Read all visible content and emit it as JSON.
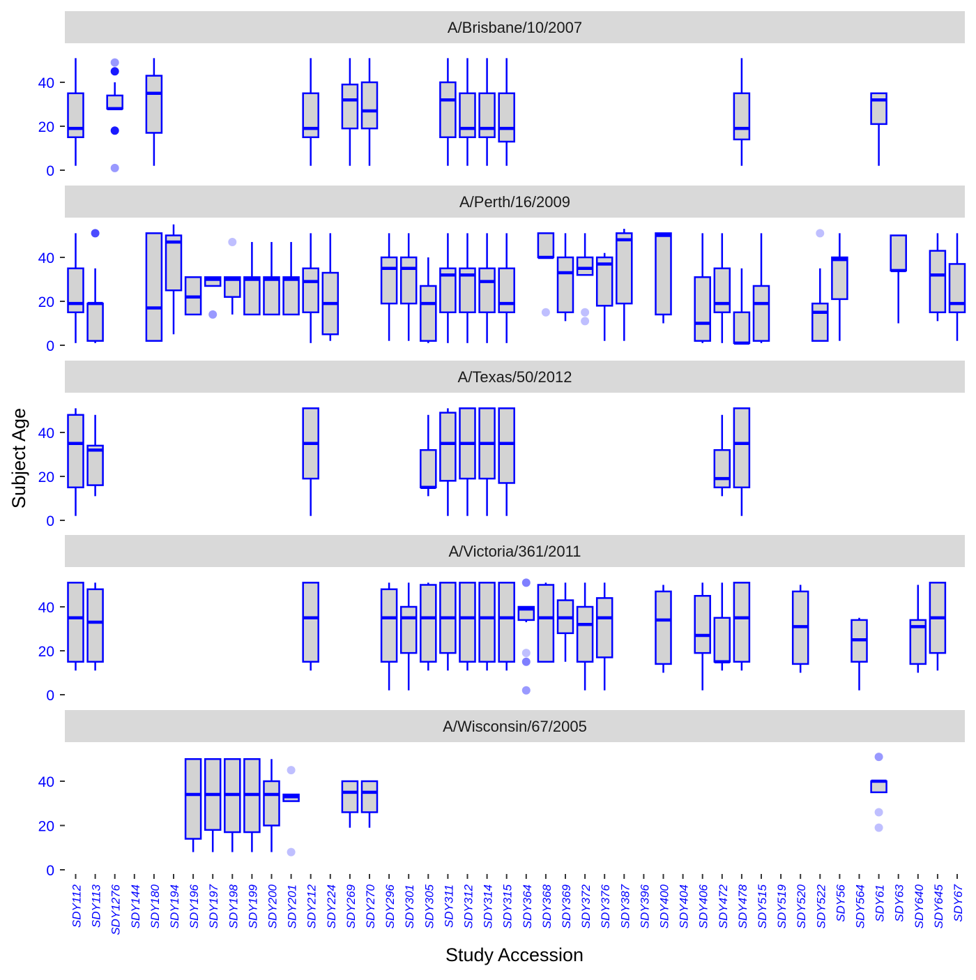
{
  "chart_data": {
    "type": "boxplot",
    "xlabel": "Study Accession",
    "ylabel": "Subject Age",
    "ylim": [
      0,
      52
    ],
    "yticks": [
      0,
      20,
      40
    ],
    "grid": false,
    "colors": {
      "box_fill": "#d3d3d3",
      "box_stroke": "#0000ff",
      "strip": "#d9d9d9",
      "tick_text": "#0000ff"
    },
    "categories": [
      "SDY112",
      "SDY113",
      "SDY1276",
      "SDY144",
      "SDY180",
      "SDY194",
      "SDY196",
      "SDY197",
      "SDY198",
      "SDY199",
      "SDY200",
      "SDY201",
      "SDY212",
      "SDY224",
      "SDY269",
      "SDY270",
      "SDY296",
      "SDY301",
      "SDY305",
      "SDY311",
      "SDY312",
      "SDY314",
      "SDY315",
      "SDY364",
      "SDY368",
      "SDY369",
      "SDY372",
      "SDY376",
      "SDY387",
      "SDY396",
      "SDY400",
      "SDY404",
      "SDY406",
      "SDY472",
      "SDY478",
      "SDY515",
      "SDY519",
      "SDY520",
      "SDY522",
      "SDY56",
      "SDY564",
      "SDY61",
      "SDY63",
      "SDY640",
      "SDY645",
      "SDY67"
    ],
    "facets": [
      {
        "label": "A/Brisbane/10/2007",
        "boxes": [
          {
            "cat": "SDY112",
            "min": 2,
            "q1": 15,
            "med": 19,
            "q3": 35,
            "max": 51
          },
          {
            "cat": "SDY1276",
            "min": 28,
            "q1": 28,
            "med": 28,
            "q3": 34,
            "max": 40,
            "outliers": [
              {
                "y": 49,
                "a": 0.4
              },
              {
                "y": 45,
                "a": 0.9
              },
              {
                "y": 18,
                "a": 0.9
              },
              {
                "y": 1,
                "a": 0.4
              }
            ]
          },
          {
            "cat": "SDY180",
            "min": 2,
            "q1": 17,
            "med": 35,
            "q3": 43,
            "max": 51
          },
          {
            "cat": "SDY212",
            "min": 2,
            "q1": 15,
            "med": 19,
            "q3": 35,
            "max": 51
          },
          {
            "cat": "SDY269",
            "min": 2,
            "q1": 19,
            "med": 32,
            "q3": 39,
            "max": 51
          },
          {
            "cat": "SDY270",
            "min": 2,
            "q1": 19,
            "med": 27,
            "q3": 40,
            "max": 51
          },
          {
            "cat": "SDY311",
            "min": 2,
            "q1": 15,
            "med": 32,
            "q3": 40,
            "max": 51
          },
          {
            "cat": "SDY312",
            "min": 2,
            "q1": 15,
            "med": 19,
            "q3": 35,
            "max": 51
          },
          {
            "cat": "SDY314",
            "min": 2,
            "q1": 15,
            "med": 19,
            "q3": 35,
            "max": 51
          },
          {
            "cat": "SDY315",
            "min": 2,
            "q1": 13,
            "med": 19,
            "q3": 35,
            "max": 51
          },
          {
            "cat": "SDY478",
            "min": 2,
            "q1": 14,
            "med": 19,
            "q3": 35,
            "max": 51
          },
          {
            "cat": "SDY61",
            "min": 2,
            "q1": 21,
            "med": 32,
            "q3": 35,
            "max": 35
          }
        ]
      },
      {
        "label": "A/Perth/16/2009",
        "boxes": [
          {
            "cat": "SDY112",
            "min": 1,
            "q1": 15,
            "med": 19,
            "q3": 35,
            "max": 51
          },
          {
            "cat": "SDY113",
            "min": 1,
            "q1": 2,
            "med": 19,
            "q3": 19,
            "max": 35,
            "outliers": [
              {
                "y": 51,
                "a": 0.7
              }
            ]
          },
          {
            "cat": "SDY180",
            "min": 2,
            "q1": 2,
            "med": 17,
            "q3": 51,
            "max": 51
          },
          {
            "cat": "SDY194",
            "min": 5,
            "q1": 25,
            "med": 47,
            "q3": 50,
            "max": 55
          },
          {
            "cat": "SDY196",
            "min": 14,
            "q1": 14,
            "med": 22,
            "q3": 31,
            "max": 31
          },
          {
            "cat": "SDY197",
            "min": 27,
            "q1": 27,
            "med": 30,
            "q3": 31,
            "max": 31,
            "outliers": [
              {
                "y": 14,
                "a": 0.4
              }
            ]
          },
          {
            "cat": "SDY198",
            "min": 14,
            "q1": 22,
            "med": 30,
            "q3": 31,
            "max": 31,
            "outliers": [
              {
                "y": 47,
                "a": 0.25
              }
            ]
          },
          {
            "cat": "SDY199",
            "min": 14,
            "q1": 14,
            "med": 30,
            "q3": 31,
            "max": 47
          },
          {
            "cat": "SDY200",
            "min": 14,
            "q1": 14,
            "med": 30,
            "q3": 31,
            "max": 47
          },
          {
            "cat": "SDY201",
            "min": 14,
            "q1": 14,
            "med": 30,
            "q3": 31,
            "max": 47
          },
          {
            "cat": "SDY212",
            "min": 1,
            "q1": 15,
            "med": 29,
            "q3": 35,
            "max": 51
          },
          {
            "cat": "SDY224",
            "min": 2,
            "q1": 5,
            "med": 19,
            "q3": 33,
            "max": 51
          },
          {
            "cat": "SDY296",
            "min": 2,
            "q1": 19,
            "med": 35,
            "q3": 40,
            "max": 51
          },
          {
            "cat": "SDY301",
            "min": 2,
            "q1": 19,
            "med": 35,
            "q3": 40,
            "max": 51
          },
          {
            "cat": "SDY305",
            "min": 1,
            "q1": 2,
            "med": 19,
            "q3": 27,
            "max": 40
          },
          {
            "cat": "SDY311",
            "min": 1,
            "q1": 15,
            "med": 32,
            "q3": 35,
            "max": 51
          },
          {
            "cat": "SDY312",
            "min": 1,
            "q1": 15,
            "med": 32,
            "q3": 35,
            "max": 51
          },
          {
            "cat": "SDY314",
            "min": 1,
            "q1": 15,
            "med": 29,
            "q3": 35,
            "max": 51
          },
          {
            "cat": "SDY315",
            "min": 1,
            "q1": 15,
            "med": 19,
            "q3": 35,
            "max": 51
          },
          {
            "cat": "SDY368",
            "min": 40,
            "q1": 40,
            "med": 40,
            "q3": 51,
            "max": 51,
            "outliers": [
              {
                "y": 15,
                "a": 0.25
              }
            ]
          },
          {
            "cat": "SDY369",
            "min": 11,
            "q1": 15,
            "med": 33,
            "q3": 40,
            "max": 51
          },
          {
            "cat": "SDY372",
            "min": 32,
            "q1": 32,
            "med": 35,
            "q3": 40,
            "max": 51,
            "outliers": [
              {
                "y": 15,
                "a": 0.25
              },
              {
                "y": 11,
                "a": 0.25
              }
            ]
          },
          {
            "cat": "SDY376",
            "min": 2,
            "q1": 18,
            "med": 37,
            "q3": 40,
            "max": 42
          },
          {
            "cat": "SDY387",
            "min": 2,
            "q1": 19,
            "med": 48,
            "q3": 51,
            "max": 53
          },
          {
            "cat": "SDY400",
            "min": 10,
            "q1": 14,
            "med": 50,
            "q3": 51,
            "max": 51
          },
          {
            "cat": "SDY406",
            "min": 1,
            "q1": 2,
            "med": 10,
            "q3": 31,
            "max": 51
          },
          {
            "cat": "SDY472",
            "min": 1,
            "q1": 15,
            "med": 19,
            "q3": 35,
            "max": 51
          },
          {
            "cat": "SDY478",
            "min": 1,
            "q1": 1,
            "med": 1,
            "q3": 15,
            "max": 35
          },
          {
            "cat": "SDY515",
            "min": 1,
            "q1": 2,
            "med": 19,
            "q3": 27,
            "max": 51
          },
          {
            "cat": "SDY522",
            "min": 2,
            "q1": 2,
            "med": 15,
            "q3": 19,
            "max": 35,
            "outliers": [
              {
                "y": 51,
                "a": 0.25
              }
            ]
          },
          {
            "cat": "SDY56",
            "min": 2,
            "q1": 21,
            "med": 39,
            "q3": 40,
            "max": 51
          },
          {
            "cat": "SDY63",
            "min": 10,
            "q1": 34,
            "med": 34,
            "q3": 50,
            "max": 50
          },
          {
            "cat": "SDY645",
            "min": 11,
            "q1": 15,
            "med": 32,
            "q3": 43,
            "max": 51
          },
          {
            "cat": "SDY67",
            "min": 2,
            "q1": 15,
            "med": 19,
            "q3": 37,
            "max": 51
          }
        ]
      },
      {
        "label": "A/Texas/50/2012",
        "boxes": [
          {
            "cat": "SDY112",
            "min": 2,
            "q1": 15,
            "med": 35,
            "q3": 48,
            "max": 51
          },
          {
            "cat": "SDY113",
            "min": 11,
            "q1": 16,
            "med": 32,
            "q3": 34,
            "max": 48
          },
          {
            "cat": "SDY212",
            "min": 2,
            "q1": 19,
            "med": 35,
            "q3": 51,
            "max": 51
          },
          {
            "cat": "SDY305",
            "min": 11,
            "q1": 15,
            "med": 15,
            "q3": 32,
            "max": 48
          },
          {
            "cat": "SDY311",
            "min": 2,
            "q1": 18,
            "med": 35,
            "q3": 49,
            "max": 51
          },
          {
            "cat": "SDY312",
            "min": 2,
            "q1": 19,
            "med": 35,
            "q3": 51,
            "max": 51
          },
          {
            "cat": "SDY314",
            "min": 2,
            "q1": 19,
            "med": 35,
            "q3": 51,
            "max": 51
          },
          {
            "cat": "SDY315",
            "min": 2,
            "q1": 17,
            "med": 35,
            "q3": 51,
            "max": 51
          },
          {
            "cat": "SDY472",
            "min": 11,
            "q1": 15,
            "med": 19,
            "q3": 32,
            "max": 48
          },
          {
            "cat": "SDY478",
            "min": 2,
            "q1": 15,
            "med": 35,
            "q3": 51,
            "max": 51
          }
        ]
      },
      {
        "label": "A/Victoria/361/2011",
        "boxes": [
          {
            "cat": "SDY112",
            "min": 11,
            "q1": 15,
            "med": 35,
            "q3": 51,
            "max": 51
          },
          {
            "cat": "SDY113",
            "min": 11,
            "q1": 15,
            "med": 33,
            "q3": 48,
            "max": 51
          },
          {
            "cat": "SDY212",
            "min": 11,
            "q1": 15,
            "med": 35,
            "q3": 51,
            "max": 51
          },
          {
            "cat": "SDY296",
            "min": 2,
            "q1": 15,
            "med": 35,
            "q3": 48,
            "max": 51
          },
          {
            "cat": "SDY301",
            "min": 2,
            "q1": 19,
            "med": 35,
            "q3": 40,
            "max": 51
          },
          {
            "cat": "SDY305",
            "min": 11,
            "q1": 15,
            "med": 35,
            "q3": 50,
            "max": 51
          },
          {
            "cat": "SDY311",
            "min": 11,
            "q1": 19,
            "med": 35,
            "q3": 51,
            "max": 51
          },
          {
            "cat": "SDY312",
            "min": 11,
            "q1": 15,
            "med": 35,
            "q3": 51,
            "max": 51
          },
          {
            "cat": "SDY314",
            "min": 11,
            "q1": 15,
            "med": 35,
            "q3": 51,
            "max": 51
          },
          {
            "cat": "SDY315",
            "min": 11,
            "q1": 15,
            "med": 35,
            "q3": 51,
            "max": 51
          },
          {
            "cat": "SDY364",
            "min": 33,
            "q1": 34,
            "med": 39,
            "q3": 40,
            "max": 40,
            "outliers": [
              {
                "y": 51,
                "a": 0.5
              },
              {
                "y": 19,
                "a": 0.25
              },
              {
                "y": 15,
                "a": 0.5
              },
              {
                "y": 2,
                "a": 0.4
              }
            ]
          },
          {
            "cat": "SDY368",
            "min": 15,
            "q1": 15,
            "med": 35,
            "q3": 50,
            "max": 51
          },
          {
            "cat": "SDY369",
            "min": 15,
            "q1": 28,
            "med": 35,
            "q3": 43,
            "max": 51
          },
          {
            "cat": "SDY372",
            "min": 2,
            "q1": 15,
            "med": 32,
            "q3": 40,
            "max": 51
          },
          {
            "cat": "SDY376",
            "min": 2,
            "q1": 17,
            "med": 35,
            "q3": 44,
            "max": 51
          },
          {
            "cat": "SDY400",
            "min": 10,
            "q1": 14,
            "med": 34,
            "q3": 47,
            "max": 50
          },
          {
            "cat": "SDY406",
            "min": 2,
            "q1": 19,
            "med": 27,
            "q3": 45,
            "max": 51
          },
          {
            "cat": "SDY472",
            "min": 11,
            "q1": 15,
            "med": 15,
            "q3": 35,
            "max": 51
          },
          {
            "cat": "SDY478",
            "min": 11,
            "q1": 15,
            "med": 35,
            "q3": 51,
            "max": 51
          },
          {
            "cat": "SDY520",
            "min": 10,
            "q1": 14,
            "med": 31,
            "q3": 47,
            "max": 50
          },
          {
            "cat": "SDY564",
            "min": 2,
            "q1": 15,
            "med": 25,
            "q3": 34,
            "max": 35
          },
          {
            "cat": "SDY640",
            "min": 10,
            "q1": 14,
            "med": 31,
            "q3": 34,
            "max": 50
          },
          {
            "cat": "SDY645",
            "min": 11,
            "q1": 19,
            "med": 35,
            "q3": 51,
            "max": 51
          }
        ]
      },
      {
        "label": "A/Wisconsin/67/2005",
        "boxes": [
          {
            "cat": "SDY196",
            "min": 8,
            "q1": 14,
            "med": 34,
            "q3": 50,
            "max": 50
          },
          {
            "cat": "SDY197",
            "min": 8,
            "q1": 18,
            "med": 34,
            "q3": 50,
            "max": 50
          },
          {
            "cat": "SDY198",
            "min": 8,
            "q1": 17,
            "med": 34,
            "q3": 50,
            "max": 50
          },
          {
            "cat": "SDY199",
            "min": 8,
            "q1": 17,
            "med": 34,
            "q3": 50,
            "max": 50
          },
          {
            "cat": "SDY200",
            "min": 8,
            "q1": 20,
            "med": 34,
            "q3": 40,
            "max": 50
          },
          {
            "cat": "SDY201",
            "min": 31,
            "q1": 31,
            "med": 33,
            "q3": 34,
            "max": 34,
            "outliers": [
              {
                "y": 45,
                "a": 0.25
              },
              {
                "y": 8,
                "a": 0.25
              }
            ]
          },
          {
            "cat": "SDY269",
            "min": 19,
            "q1": 26,
            "med": 35,
            "q3": 40,
            "max": 40
          },
          {
            "cat": "SDY270",
            "min": 19,
            "q1": 26,
            "med": 35,
            "q3": 40,
            "max": 40
          },
          {
            "cat": "SDY61",
            "min": 35,
            "q1": 35,
            "med": 40,
            "q3": 40,
            "max": 40,
            "outliers": [
              {
                "y": 51,
                "a": 0.4
              },
              {
                "y": 26,
                "a": 0.25
              },
              {
                "y": 19,
                "a": 0.25
              }
            ]
          }
        ]
      }
    ]
  }
}
